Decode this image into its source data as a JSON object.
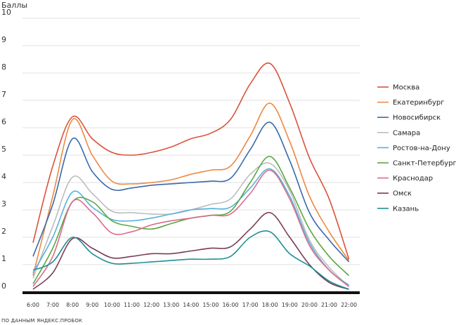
{
  "chart_data": {
    "type": "line",
    "ylabel": "Баллы",
    "ylim": [
      0,
      10
    ],
    "yticks": [
      "0",
      "1",
      "2",
      "3",
      "4",
      "5",
      "6",
      "7",
      "8",
      "9",
      "10"
    ],
    "categories": [
      "6:00",
      "7:00",
      "8:00",
      "9:00",
      "10:00",
      "11:00",
      "12:00",
      "13:00",
      "14:00",
      "15:00",
      "16:00",
      "17:00",
      "18:00",
      "19:00",
      "20:00",
      "21:00",
      "22:00"
    ],
    "grid": true,
    "legend_position": "right",
    "source_note": "ПО ДАННЫМ ЯНДЕКС.ПРОБОК",
    "series": [
      {
        "name": "Москва",
        "color": "#d9533a",
        "values": [
          1.8,
          4.6,
          6.4,
          5.6,
          5.1,
          5.0,
          5.1,
          5.3,
          5.6,
          5.8,
          6.3,
          7.6,
          8.35,
          6.9,
          4.9,
          3.4,
          1.2
        ]
      },
      {
        "name": "Екатеринбург",
        "color": "#ec8943",
        "values": [
          0.6,
          3.5,
          6.3,
          5.0,
          4.05,
          3.95,
          4.0,
          4.1,
          4.3,
          4.45,
          4.6,
          5.7,
          6.9,
          5.5,
          3.5,
          2.2,
          1.15
        ]
      },
      {
        "name": "Новосибирск",
        "color": "#3a69a8",
        "values": [
          1.3,
          3.2,
          5.6,
          4.4,
          3.75,
          3.8,
          3.9,
          3.95,
          4.0,
          4.05,
          4.15,
          5.2,
          6.2,
          4.8,
          2.9,
          1.9,
          1.1
        ]
      },
      {
        "name": "Самара",
        "color": "#bdbdbd",
        "values": [
          0.5,
          2.4,
          4.2,
          3.6,
          2.95,
          2.9,
          2.85,
          2.85,
          3.0,
          3.2,
          3.4,
          4.3,
          4.7,
          3.7,
          1.9,
          0.9,
          0.2
        ]
      },
      {
        "name": "Ростов-на-Дону",
        "color": "#59b0dd",
        "values": [
          0.7,
          2.0,
          3.65,
          3.1,
          2.65,
          2.6,
          2.7,
          2.85,
          3.0,
          3.05,
          3.1,
          3.8,
          4.5,
          3.5,
          1.8,
          0.8,
          0.25
        ]
      },
      {
        "name": "Санкт-Петербург",
        "color": "#5aa842",
        "values": [
          0.3,
          1.6,
          3.3,
          3.3,
          2.6,
          2.4,
          2.3,
          2.5,
          2.7,
          2.8,
          2.95,
          4.0,
          4.95,
          3.8,
          2.3,
          1.3,
          0.6
        ]
      },
      {
        "name": "Краснодар",
        "color": "#d96b8c",
        "values": [
          0.2,
          1.3,
          3.3,
          2.9,
          2.15,
          2.2,
          2.45,
          2.6,
          2.7,
          2.8,
          2.85,
          3.6,
          4.45,
          3.4,
          1.7,
          0.8,
          0.2
        ]
      },
      {
        "name": "Омск",
        "color": "#7a3b55",
        "values": [
          0.1,
          0.7,
          1.95,
          1.6,
          1.25,
          1.3,
          1.4,
          1.4,
          1.5,
          1.6,
          1.65,
          2.3,
          2.9,
          2.0,
          1.0,
          0.35,
          0.1
        ]
      },
      {
        "name": "Казань",
        "color": "#1f8f96",
        "values": [
          0.8,
          1.1,
          2.0,
          1.4,
          1.05,
          1.05,
          1.1,
          1.15,
          1.2,
          1.2,
          1.3,
          2.0,
          2.2,
          1.4,
          0.95,
          0.4,
          0.1
        ]
      }
    ]
  }
}
